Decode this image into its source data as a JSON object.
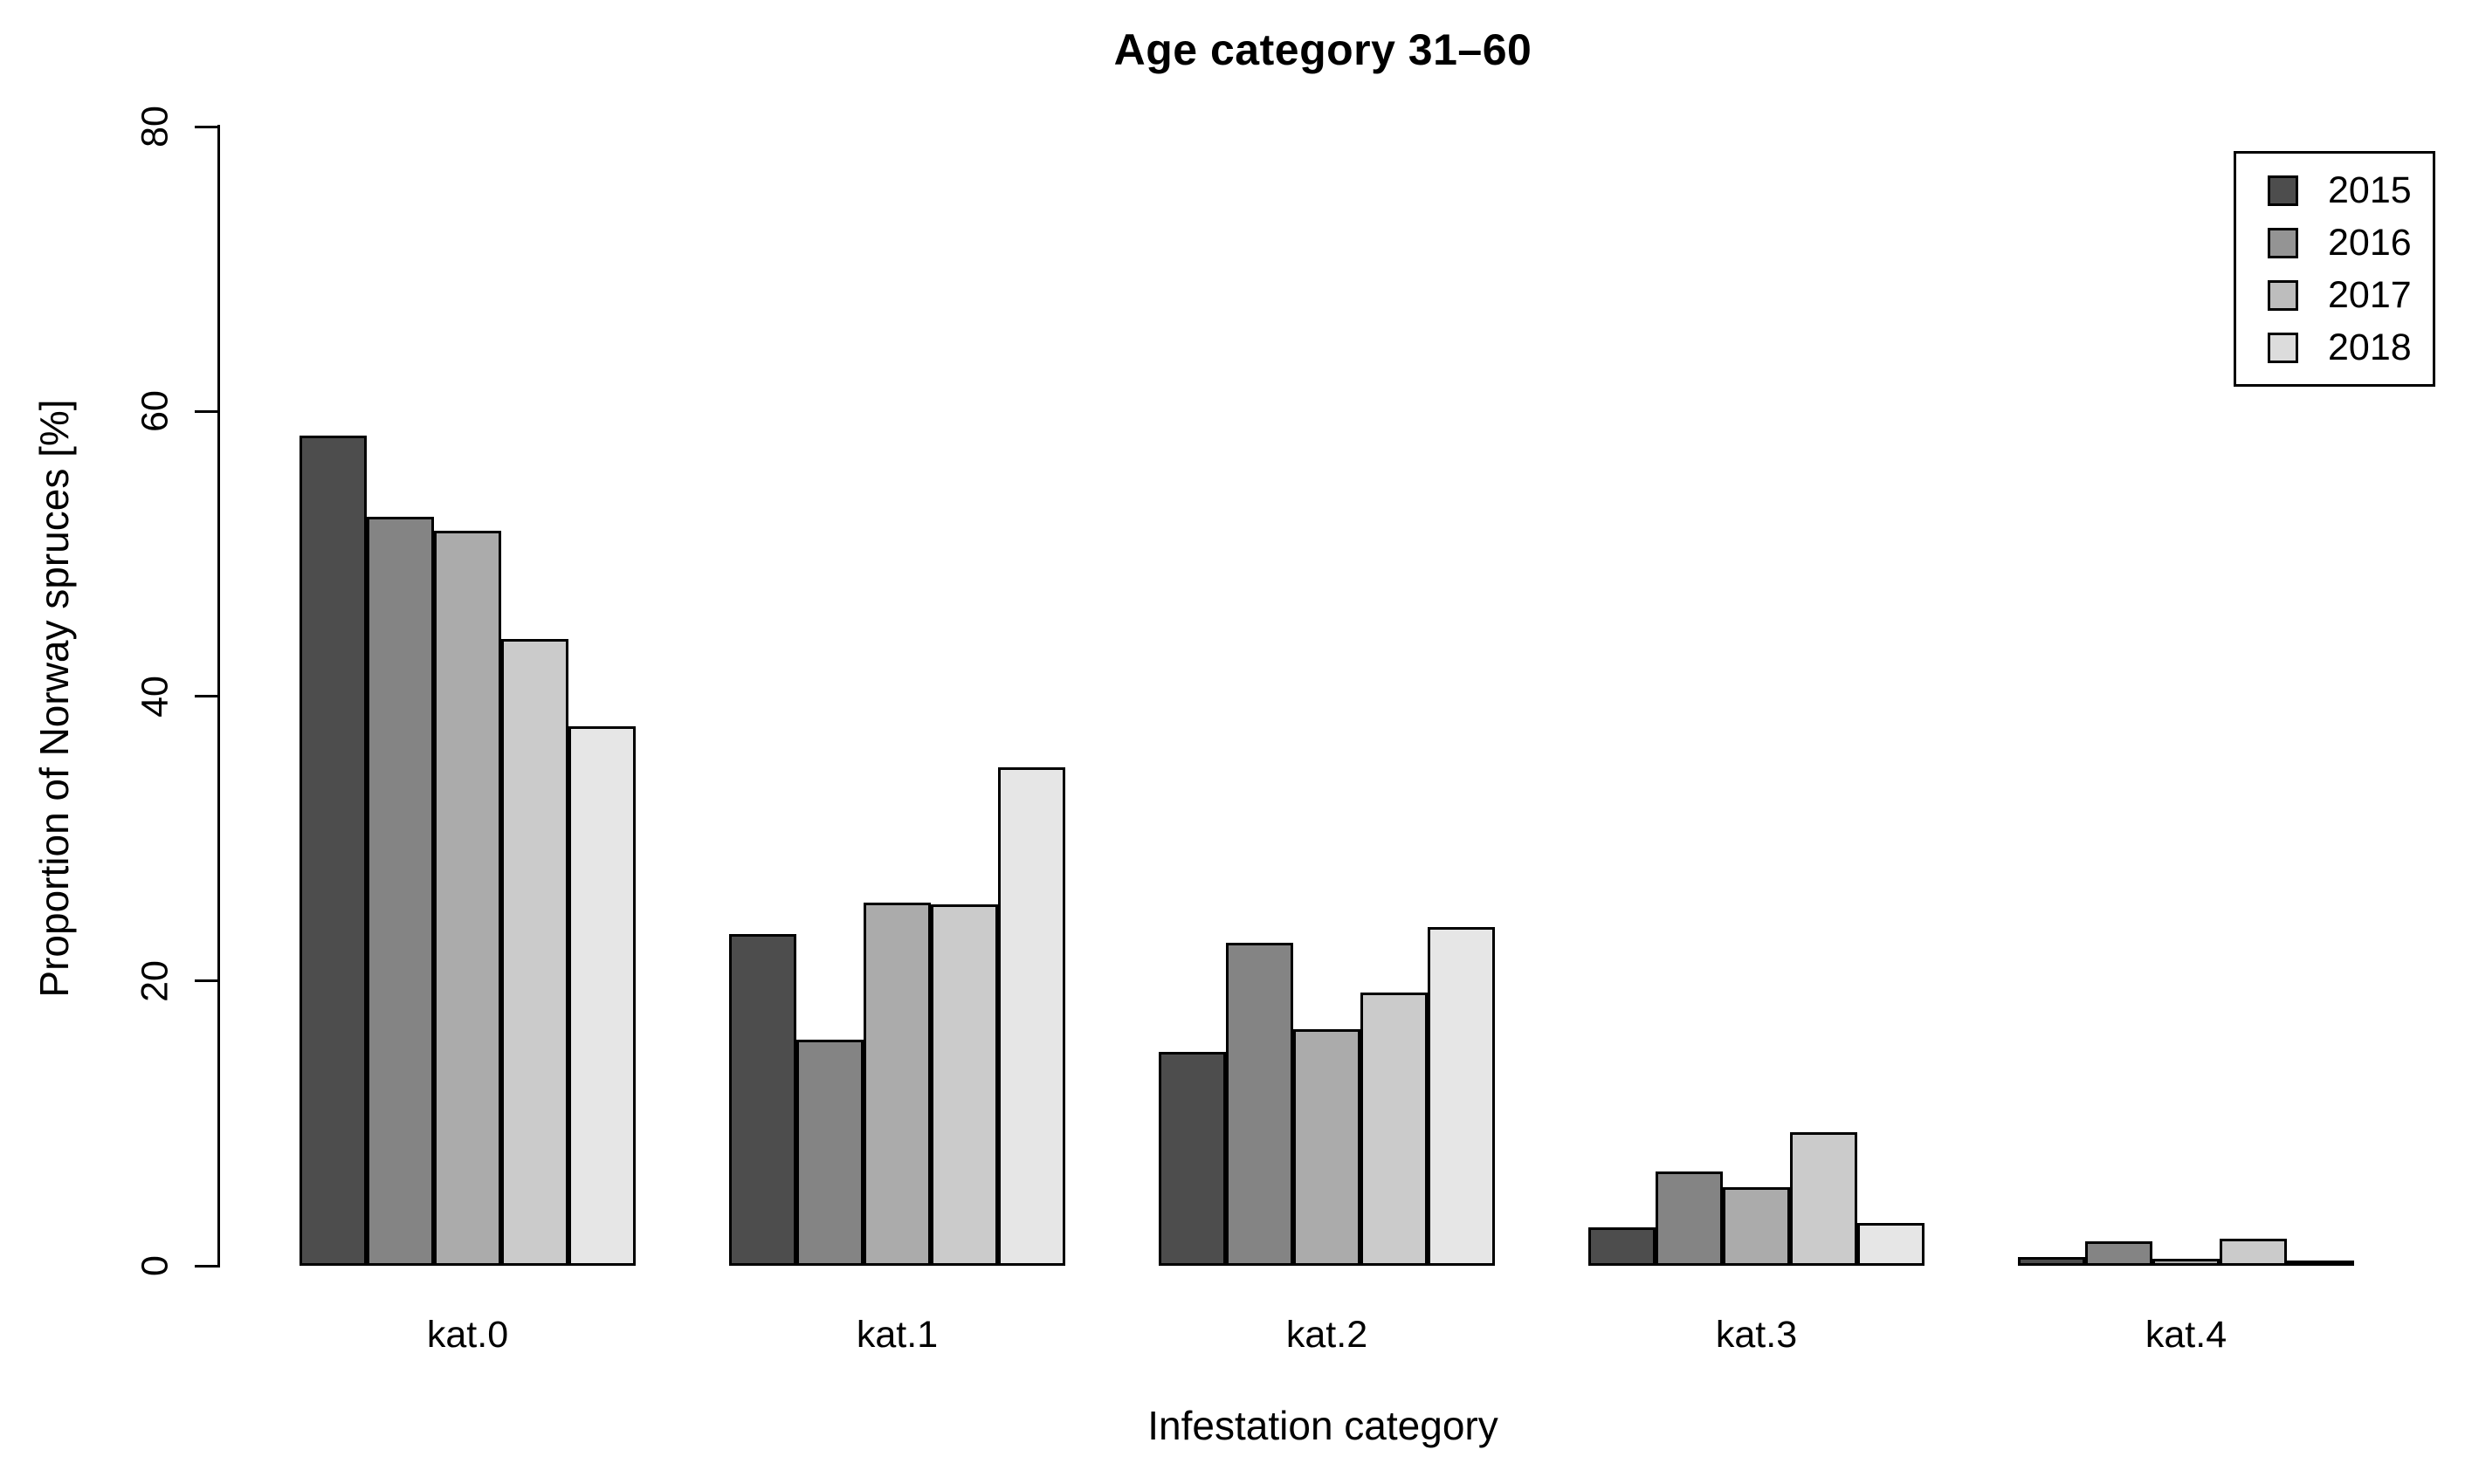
{
  "page": {
    "background": "#FFFFFF"
  },
  "chart_data": {
    "type": "bar",
    "title": "Age category 31–60",
    "xlabel": "Infestation category",
    "ylabel": "Proportion of Norway spruces [%]",
    "categories": [
      "kat.0",
      "kat.1",
      "kat.2",
      "kat.3",
      "kat.4"
    ],
    "series": [
      {
        "name": "2015",
        "color": "#4D4D4D",
        "values": [
          58.3,
          23.3,
          15.0,
          2.7,
          0.6
        ]
      },
      {
        "name": "2016",
        "color": "#848484",
        "values": [
          52.6,
          15.9,
          22.7,
          6.6,
          1.7
        ]
      },
      {
        "name": "2017",
        "color": "#ABABAB",
        "values": [
          51.6,
          25.5,
          16.6,
          5.5,
          0.5
        ]
      },
      {
        "name": "2018",
        "color": "#CBCBCB",
        "values": [
          44.0,
          25.4,
          19.2,
          9.4,
          1.9
        ]
      },
      {
        "name": "",
        "color": "#E6E6E6",
        "values": [
          37.9,
          35.0,
          23.8,
          3.0,
          0.1
        ]
      }
    ],
    "ylim": [
      0,
      80
    ],
    "yticks": [
      0,
      20,
      40,
      60,
      80
    ],
    "grid": false,
    "bar_border_color": "#000000",
    "legend": {
      "position": "top-right",
      "entries": [
        {
          "label": "2015",
          "color": "#4D4D4D"
        },
        {
          "label": "2016",
          "color": "#949494"
        },
        {
          "label": "2017",
          "color": "#BDBDBD"
        },
        {
          "label": "2018",
          "color": "#DCDCDC"
        }
      ]
    }
  }
}
